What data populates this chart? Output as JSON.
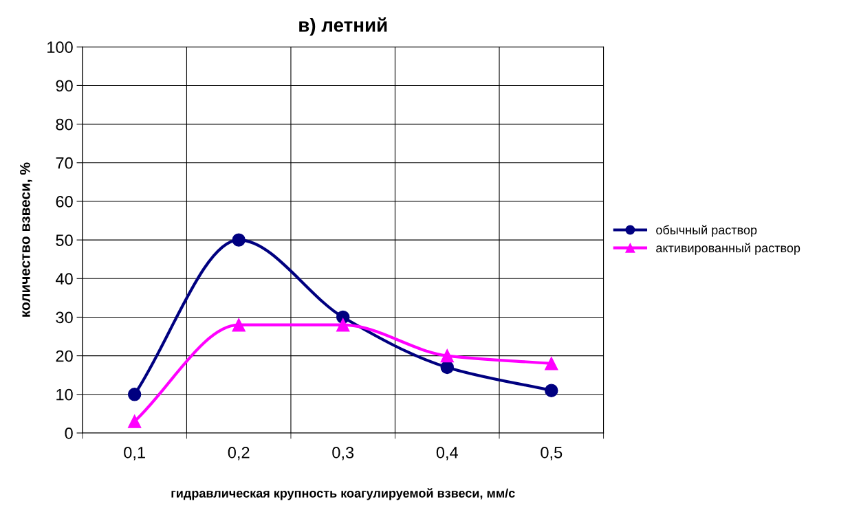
{
  "chart_data": {
    "type": "line",
    "title": "в) летний",
    "xlabel": "гидравлическая крупность коагулируемой взвеси, мм/с",
    "ylabel": "количество взвеси, %",
    "categories": [
      "0,1",
      "0,2",
      "0,3",
      "0,4",
      "0,5"
    ],
    "series": [
      {
        "name": "обычный раствор",
        "color": "#000080",
        "values": [
          10,
          50,
          30,
          17,
          11
        ],
        "marker": "circle"
      },
      {
        "name": "активированный раствор",
        "color": "#ff00ff",
        "values": [
          3,
          28,
          28,
          20,
          18
        ],
        "marker": "triangle"
      }
    ],
    "ylim": [
      0,
      100
    ],
    "yticks": [
      0,
      10,
      20,
      30,
      40,
      50,
      60,
      70,
      80,
      90,
      100
    ],
    "grid": true,
    "legend": "right",
    "line_style": "solid"
  }
}
